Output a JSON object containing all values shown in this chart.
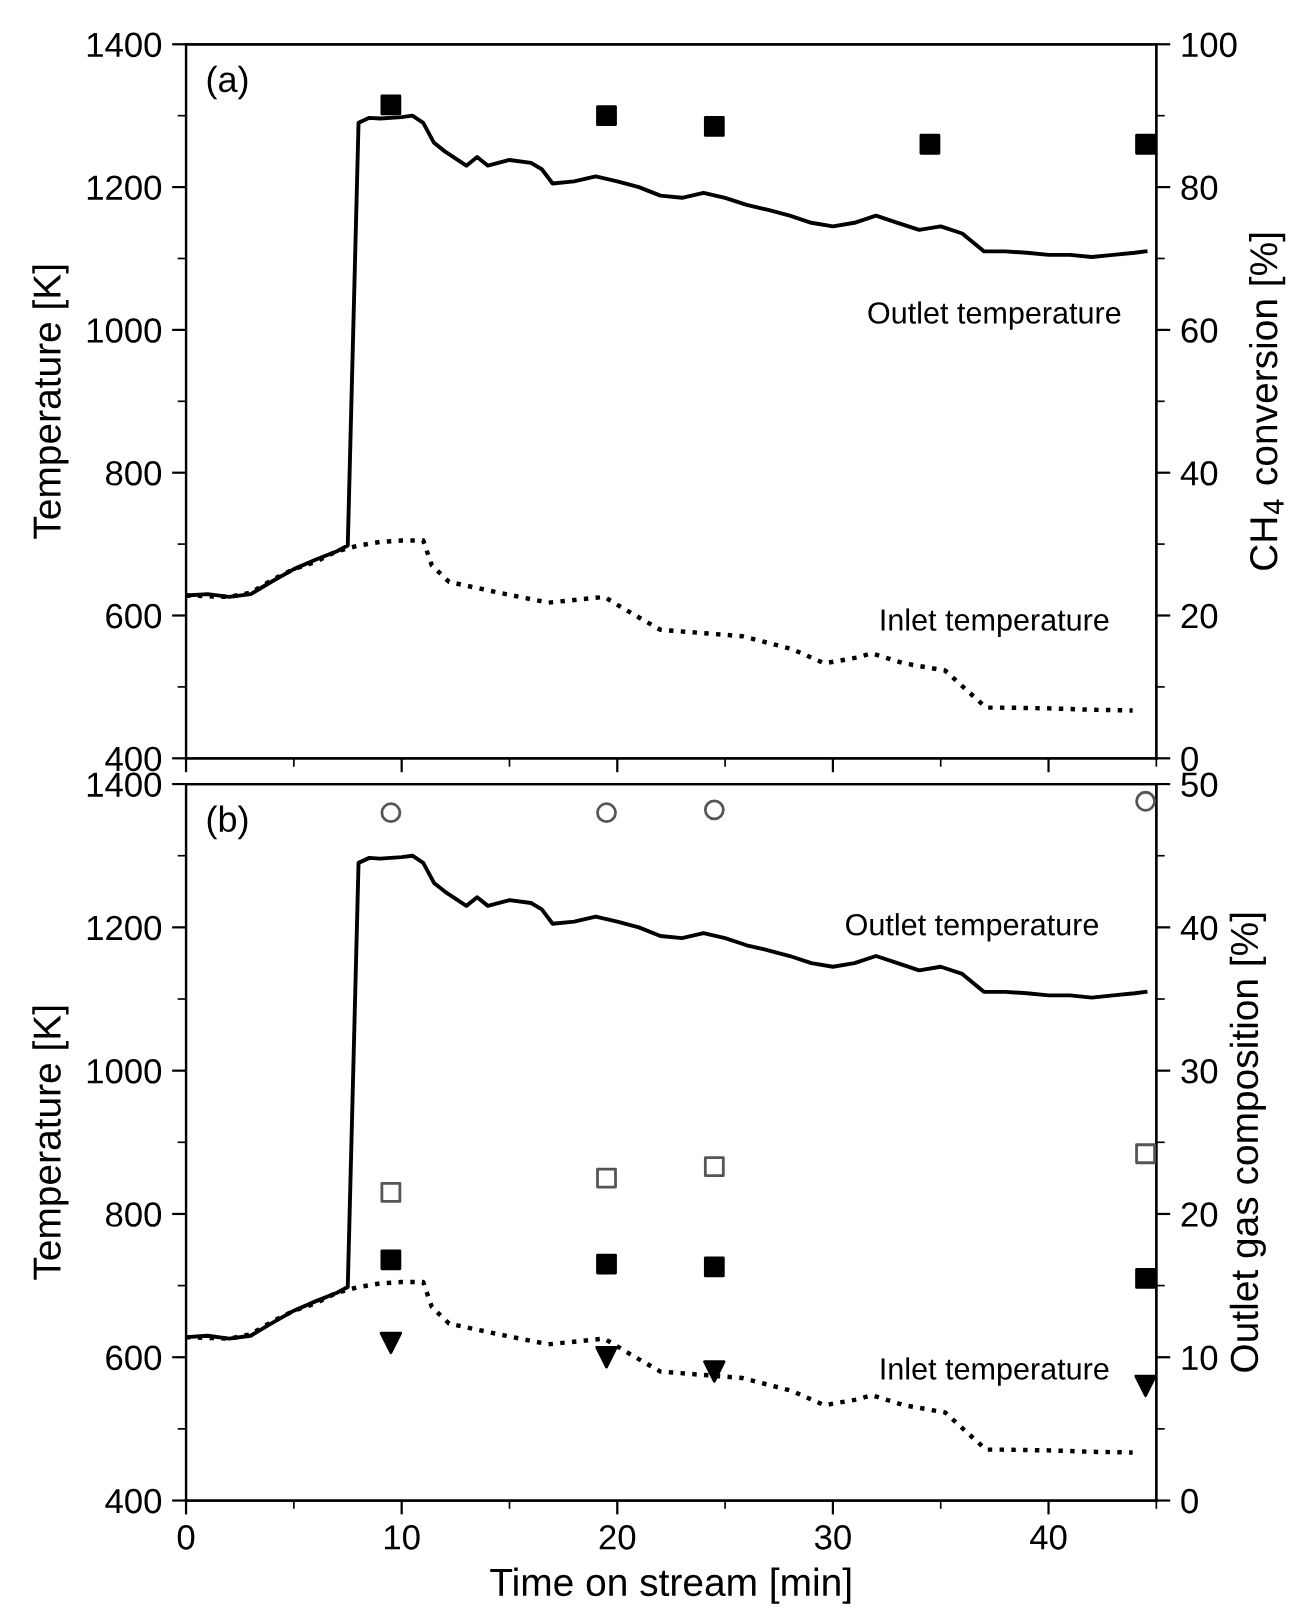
{
  "chart_data": [
    {
      "type": "line",
      "ylabel": "Temperature [K]",
      "y2label": "CH$_{4}$ conversion [%]",
      "xlim": [
        0,
        45
      ],
      "xticks": [
        0,
        10,
        20,
        30,
        40
      ],
      "ylim": [
        400,
        1400
      ],
      "yticks": [
        400,
        600,
        800,
        1000,
        1200,
        1400
      ],
      "y2lim": [
        0,
        100
      ],
      "y2ticks": [
        0,
        20,
        40,
        60,
        80,
        100
      ],
      "tick_labels": "y",
      "grid": false,
      "legend": false,
      "annotations": [
        "(a)",
        "Outlet temperature",
        "Inlet temperature"
      ],
      "series": [
        {
          "line_style": "solid",
          "color": "#000000",
          "x": [
            0,
            1,
            2,
            3,
            4,
            5,
            6,
            7,
            7.5,
            8,
            8.5,
            9,
            10,
            10.5,
            11,
            11.5,
            12,
            13,
            13.5,
            14,
            15,
            16,
            16.5,
            17,
            18,
            19,
            20,
            21,
            22,
            23,
            24,
            25,
            26,
            27,
            28,
            29,
            30,
            31,
            32,
            33,
            34,
            35,
            36,
            37,
            38,
            39,
            40,
            41,
            42,
            43,
            44,
            44.5
          ],
          "values": [
            628,
            630,
            626,
            630,
            648,
            665,
            678,
            690,
            698,
            1290,
            1297,
            1296,
            1298,
            1300,
            1290,
            1262,
            1250,
            1230,
            1242,
            1230,
            1238,
            1234,
            1225,
            1205,
            1208,
            1215,
            1208,
            1200,
            1188,
            1185,
            1192,
            1185,
            1175,
            1168,
            1160,
            1150,
            1145,
            1150,
            1160,
            1150,
            1140,
            1145,
            1135,
            1110,
            1110,
            1108,
            1105,
            1105,
            1102,
            1105,
            1108,
            1110
          ]
        },
        {
          "line_style": "dotted",
          "color": "#000000",
          "x": [
            0,
            2,
            3,
            4,
            5,
            6,
            7,
            8,
            9,
            10,
            11,
            11.4,
            12.2,
            14.5,
            16.8,
            19.4,
            20.5,
            22,
            25.8,
            28.1,
            29.6,
            31.1,
            31.8,
            33.3,
            35.2,
            37.1,
            37.8,
            40,
            42,
            43.9
          ],
          "values": [
            628,
            626,
            632,
            650,
            665,
            675,
            690,
            698,
            703,
            705,
            705,
            670,
            647,
            632,
            618,
            626,
            606,
            580,
            571,
            553,
            533,
            541,
            547,
            533,
            523,
            471,
            471,
            470,
            468,
            467
          ]
        },
        {
          "type": "scatter",
          "axis": "y2",
          "marker": "square",
          "color": "#000000",
          "x": [
            9.5,
            19.5,
            24.5,
            34.5,
            44.5
          ],
          "values": [
            91.5,
            90,
            88.5,
            86,
            86
          ]
        }
      ]
    },
    {
      "type": "line",
      "xlabel": "Time on stream [min]",
      "ylabel": "Temperature [K]",
      "y2label": "Outlet gas composition [%]",
      "xlim": [
        0,
        45
      ],
      "xticks": [
        0,
        10,
        20,
        30,
        40
      ],
      "ylim": [
        400,
        1400
      ],
      "yticks": [
        400,
        600,
        800,
        1000,
        1200,
        1400
      ],
      "y2lim": [
        0,
        50
      ],
      "y2ticks": [
        0,
        10,
        20,
        30,
        40,
        50
      ],
      "grid": false,
      "legend": false,
      "annotations": [
        "(b)",
        "Outlet temperature",
        "Inlet temperature"
      ],
      "series": [
        {
          "line_style": "solid",
          "color": "#000000",
          "x": [
            0,
            1,
            2,
            3,
            4,
            5,
            6,
            7,
            7.5,
            8,
            8.5,
            9,
            10,
            10.5,
            11,
            11.5,
            12,
            13,
            13.5,
            14,
            15,
            16,
            16.5,
            17,
            18,
            19,
            20,
            21,
            22,
            23,
            24,
            25,
            26,
            27,
            28,
            29,
            30,
            31,
            32,
            33,
            34,
            35,
            36,
            37,
            38,
            39,
            40,
            41,
            42,
            43,
            44,
            44.5
          ],
          "values": [
            628,
            630,
            626,
            630,
            648,
            665,
            678,
            690,
            698,
            1290,
            1297,
            1296,
            1298,
            1300,
            1290,
            1262,
            1250,
            1230,
            1242,
            1230,
            1238,
            1234,
            1225,
            1205,
            1208,
            1215,
            1208,
            1200,
            1188,
            1185,
            1192,
            1185,
            1175,
            1168,
            1160,
            1150,
            1145,
            1150,
            1160,
            1150,
            1140,
            1145,
            1135,
            1110,
            1110,
            1108,
            1105,
            1105,
            1102,
            1105,
            1108,
            1110
          ]
        },
        {
          "line_style": "dotted",
          "color": "#000000",
          "x": [
            0,
            2,
            3,
            4,
            5,
            6,
            7,
            8,
            9,
            10,
            11,
            11.4,
            12.2,
            14.5,
            16.8,
            19.4,
            20.5,
            22,
            25.8,
            28.1,
            29.6,
            31.1,
            31.8,
            33.3,
            35.2,
            37.1,
            37.8,
            40,
            42,
            43.9
          ],
          "values": [
            628,
            626,
            632,
            650,
            665,
            675,
            690,
            698,
            703,
            705,
            705,
            670,
            647,
            632,
            618,
            626,
            606,
            580,
            571,
            553,
            533,
            541,
            547,
            533,
            523,
            471,
            471,
            470,
            468,
            467
          ]
        },
        {
          "type": "scatter",
          "axis": "y2",
          "marker": "circle_open",
          "color": "#555555",
          "x": [
            9.5,
            19.5,
            24.5,
            44.5
          ],
          "values": [
            48,
            48,
            48.2,
            48.8
          ]
        },
        {
          "type": "scatter",
          "axis": "y2",
          "marker": "square_open",
          "color": "#555555",
          "x": [
            9.5,
            19.5,
            24.5,
            44.5
          ],
          "values": [
            21.5,
            22.5,
            23.3,
            24.2
          ]
        },
        {
          "type": "scatter",
          "axis": "y2",
          "marker": "square",
          "color": "#000000",
          "x": [
            9.5,
            19.5,
            24.5,
            44.5
          ],
          "values": [
            16.8,
            16.5,
            16.3,
            15.5
          ]
        },
        {
          "type": "scatter",
          "axis": "y2",
          "marker": "triangle_down",
          "color": "#000000",
          "x": [
            9.5,
            19.5,
            24.5,
            44.5
          ],
          "values": [
            11,
            10,
            9,
            8
          ]
        }
      ]
    }
  ]
}
